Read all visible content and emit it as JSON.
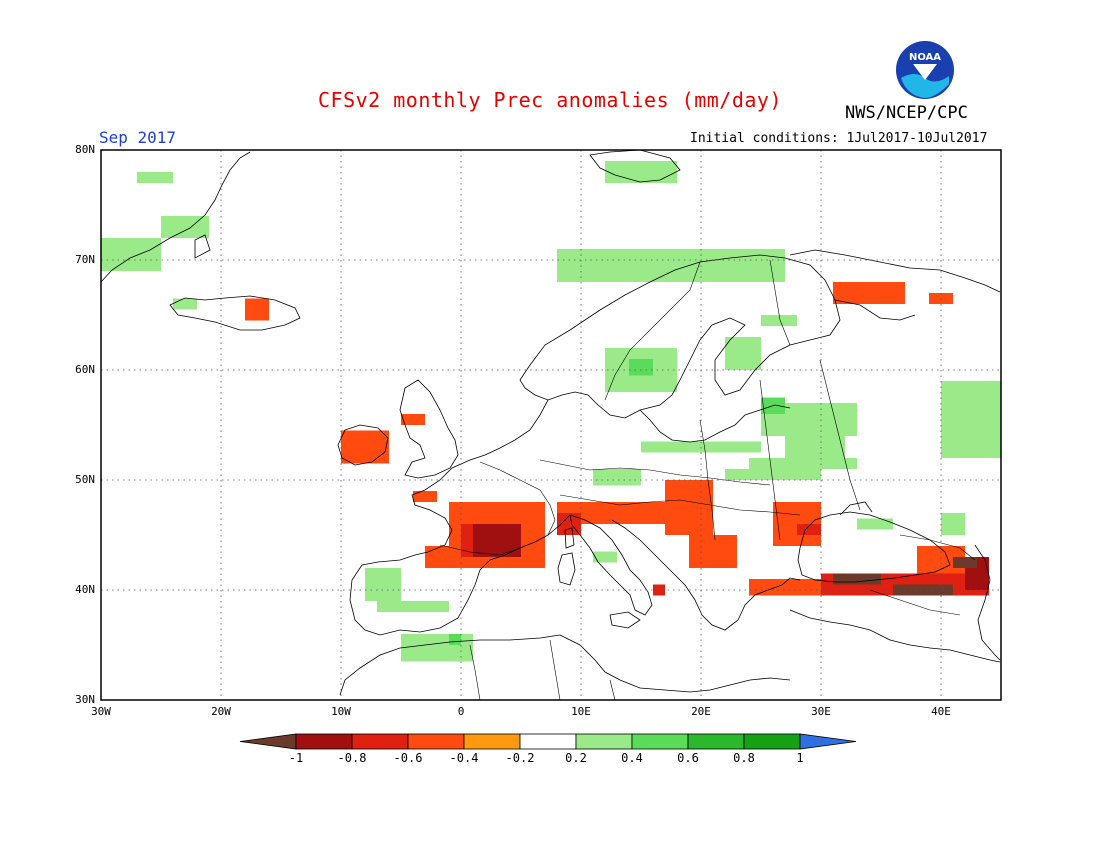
{
  "header": {
    "title": "CFSv2 monthly Prec anomalies (mm/day)",
    "organization": "NWS/NCEP/CPC",
    "logo_text": "NOAA",
    "month": "Sep 2017",
    "initial_conditions": "Initial conditions: 1Jul2017-10Jul2017"
  },
  "map": {
    "lat_range": [
      30,
      80
    ],
    "lon_range": [
      -30,
      45
    ],
    "lat_labels": [
      {
        "value": 80,
        "text": "80N"
      },
      {
        "value": 70,
        "text": "70N"
      },
      {
        "value": 60,
        "text": "60N"
      },
      {
        "value": 50,
        "text": "50N"
      },
      {
        "value": 40,
        "text": "40N"
      },
      {
        "value": 30,
        "text": "30N"
      }
    ],
    "lon_labels": [
      {
        "value": -30,
        "text": "30W"
      },
      {
        "value": -20,
        "text": "20W"
      },
      {
        "value": -10,
        "text": "10W"
      },
      {
        "value": 0,
        "text": "0"
      },
      {
        "value": 10,
        "text": "10E"
      },
      {
        "value": 20,
        "text": "20E"
      },
      {
        "value": 30,
        "text": "30E"
      },
      {
        "value": 40,
        "text": "40E"
      }
    ],
    "gridlines": "dotted",
    "anomaly_regions": [
      {
        "level": 0.2,
        "lon": [
          -30,
          -25
        ],
        "lat": [
          69,
          72
        ]
      },
      {
        "level": 0.2,
        "lon": [
          -25,
          -21
        ],
        "lat": [
          72,
          74
        ]
      },
      {
        "level": 0.2,
        "lon": [
          -27,
          -24
        ],
        "lat": [
          77,
          78
        ]
      },
      {
        "level": 0.2,
        "lon": [
          -24,
          -22
        ],
        "lat": [
          65.5,
          66.5
        ]
      },
      {
        "level": -0.4,
        "lon": [
          -18,
          -16
        ],
        "lat": [
          64.5,
          66.5
        ]
      },
      {
        "level": 0.2,
        "lon": [
          12,
          18
        ],
        "lat": [
          77,
          79
        ]
      },
      {
        "level": 0.2,
        "lon": [
          8,
          27
        ],
        "lat": [
          68,
          71
        ]
      },
      {
        "level": 0.2,
        "lon": [
          12,
          18
        ],
        "lat": [
          58,
          62
        ]
      },
      {
        "level": 0.4,
        "lon": [
          14,
          16
        ],
        "lat": [
          59.5,
          61
        ]
      },
      {
        "level": 0.2,
        "lon": [
          22,
          25
        ],
        "lat": [
          60,
          63
        ]
      },
      {
        "level": 0.2,
        "lon": [
          25,
          28
        ],
        "lat": [
          64,
          65
        ]
      },
      {
        "level": 0.2,
        "lon": [
          25,
          33
        ],
        "lat": [
          54,
          57
        ]
      },
      {
        "level": 0.2,
        "lon": [
          27,
          32
        ],
        "lat": [
          52,
          55
        ]
      },
      {
        "level": 0.4,
        "lon": [
          25,
          27
        ],
        "lat": [
          56,
          57.5
        ]
      },
      {
        "level": 0.2,
        "lon": [
          15,
          25
        ],
        "lat": [
          52.5,
          53.5
        ]
      },
      {
        "level": 0.2,
        "lon": [
          24,
          33
        ],
        "lat": [
          51,
          52
        ]
      },
      {
        "level": 0.2,
        "lon": [
          11,
          15
        ],
        "lat": [
          49.5,
          51
        ]
      },
      {
        "level": 0.2,
        "lon": [
          22,
          30
        ],
        "lat": [
          50,
          51
        ]
      },
      {
        "level": 0.2,
        "lon": [
          40,
          45
        ],
        "lat": [
          52,
          59
        ]
      },
      {
        "level": 0.2,
        "lon": [
          40,
          42
        ],
        "lat": [
          45,
          47
        ]
      },
      {
        "level": 0.2,
        "lon": [
          -8,
          -5
        ],
        "lat": [
          39,
          42
        ]
      },
      {
        "level": 0.2,
        "lon": [
          -7,
          -1
        ],
        "lat": [
          38,
          39
        ]
      },
      {
        "level": 0.2,
        "lon": [
          -5,
          1
        ],
        "lat": [
          33.5,
          36
        ]
      },
      {
        "level": 0.4,
        "lon": [
          -1,
          0
        ],
        "lat": [
          35,
          36
        ]
      },
      {
        "level": 0.2,
        "lon": [
          33,
          36
        ],
        "lat": [
          45.5,
          46.5
        ]
      },
      {
        "level": 0.2,
        "lon": [
          11,
          13
        ],
        "lat": [
          42.5,
          43.5
        ]
      },
      {
        "level": -0.4,
        "lon": [
          31,
          37
        ],
        "lat": [
          66,
          68
        ]
      },
      {
        "level": -0.4,
        "lon": [
          39,
          41
        ],
        "lat": [
          66,
          67
        ]
      },
      {
        "level": -0.4,
        "lon": [
          -10,
          -6
        ],
        "lat": [
          51.5,
          54.5
        ]
      },
      {
        "level": -0.4,
        "lon": [
          -5,
          -3
        ],
        "lat": [
          55,
          56
        ]
      },
      {
        "level": -0.4,
        "lon": [
          -4,
          -2
        ],
        "lat": [
          48,
          49
        ]
      },
      {
        "level": -0.4,
        "lon": [
          -1,
          7
        ],
        "lat": [
          44,
          48
        ]
      },
      {
        "level": -0.4,
        "lon": [
          -3,
          7
        ],
        "lat": [
          42,
          44
        ]
      },
      {
        "level": -0.4,
        "lon": [
          8,
          17
        ],
        "lat": [
          46,
          48
        ]
      },
      {
        "level": -0.4,
        "lon": [
          17,
          21
        ],
        "lat": [
          45,
          50
        ]
      },
      {
        "level": -0.4,
        "lon": [
          19,
          23
        ],
        "lat": [
          42,
          45
        ]
      },
      {
        "level": -0.4,
        "lon": [
          26,
          30
        ],
        "lat": [
          44,
          48
        ]
      },
      {
        "level": -0.6,
        "lon": [
          28,
          30
        ],
        "lat": [
          45,
          46
        ]
      },
      {
        "level": -0.4,
        "lon": [
          24,
          38
        ],
        "lat": [
          39.5,
          41
        ]
      },
      {
        "level": -0.4,
        "lon": [
          38,
          42
        ],
        "lat": [
          41,
          44
        ]
      },
      {
        "level": -0.6,
        "lon": [
          30,
          44
        ],
        "lat": [
          39.5,
          41.5
        ]
      },
      {
        "level": -0.6,
        "lon": [
          0,
          5
        ],
        "lat": [
          43,
          46
        ]
      },
      {
        "level": -0.6,
        "lon": [
          8,
          10
        ],
        "lat": [
          45,
          47
        ]
      },
      {
        "level": -0.6,
        "lon": [
          16,
          17
        ],
        "lat": [
          39.5,
          40.5
        ]
      },
      {
        "level": -0.8,
        "lon": [
          1,
          5
        ],
        "lat": [
          43,
          46
        ]
      },
      {
        "level": -0.8,
        "lon": [
          42,
          44
        ],
        "lat": [
          40,
          43
        ]
      },
      {
        "level": -1.0,
        "lon": [
          31,
          35
        ],
        "lat": [
          40.5,
          41.5
        ]
      },
      {
        "level": -1.0,
        "lon": [
          36,
          41
        ],
        "lat": [
          39.5,
          40.5
        ]
      },
      {
        "level": -1.0,
        "lon": [
          41,
          43
        ],
        "lat": [
          42,
          43
        ]
      }
    ]
  },
  "colorbar": {
    "labels": [
      "-1",
      "-0.8",
      "-0.6",
      "-0.4",
      "-0.2",
      "0.2",
      "0.4",
      "0.6",
      "0.8",
      "1"
    ],
    "colors": {
      "lt_neg1": "#6b3a2a",
      "neg1_neg08": "#a01010",
      "neg08_neg06": "#e02010",
      "neg06_neg04": "#ff4a10",
      "neg04_neg02": "#ff9a10",
      "neutral": "#ffffff",
      "pos02_pos04": "#9aea8a",
      "pos04_pos06": "#5adc5a",
      "pos06_pos08": "#2cb82c",
      "pos08_pos1": "#16a016",
      "gt_pos1": "#2f6fe0"
    }
  }
}
